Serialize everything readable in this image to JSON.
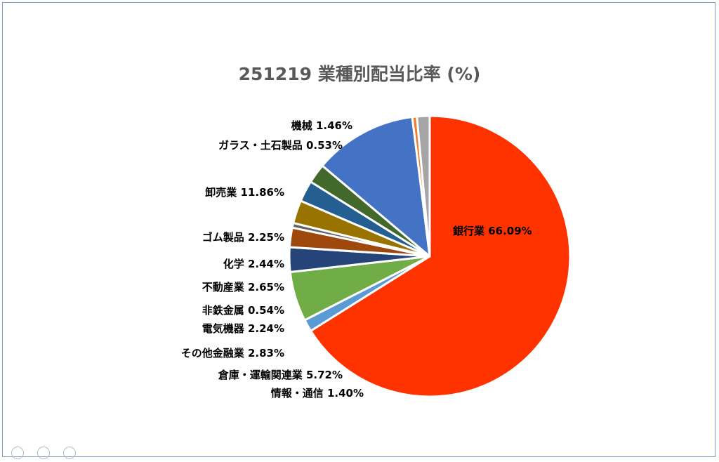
{
  "chart_data": {
    "type": "pie",
    "title": "251219 業種別配当比率 (%)",
    "slices": [
      {
        "name": "銀行業",
        "value": 66.09,
        "display": "66.09%",
        "color": "#ff3300"
      },
      {
        "name": "情報・通信",
        "value": 1.4,
        "display": "1.40%",
        "color": "#5b9bd5"
      },
      {
        "name": "倉庫・運輸関連業",
        "value": 5.72,
        "display": "5.72%",
        "color": "#70ad47"
      },
      {
        "name": "その他金融業",
        "value": 2.83,
        "display": "2.83%",
        "color": "#264478"
      },
      {
        "name": "電気機器",
        "value": 2.24,
        "display": "2.24%",
        "color": "#9e480e"
      },
      {
        "name": "非鉄金属",
        "value": 0.54,
        "display": "0.54%",
        "color": "#636363"
      },
      {
        "name": "不動産業",
        "value": 2.65,
        "display": "2.65%",
        "color": "#997300"
      },
      {
        "name": "化学",
        "value": 2.44,
        "display": "2.44%",
        "color": "#255e91"
      },
      {
        "name": "ゴム製品",
        "value": 2.25,
        "display": "2.25%",
        "color": "#43682b"
      },
      {
        "name": "卸売業",
        "value": 11.86,
        "display": "11.86%",
        "color": "#4472c4"
      },
      {
        "name": "ガラス・土石製品",
        "value": 0.53,
        "display": "0.53%",
        "color": "#ed7d31"
      },
      {
        "name": "機械",
        "value": 1.46,
        "display": "1.46%",
        "color": "#a5a5a5"
      }
    ]
  }
}
